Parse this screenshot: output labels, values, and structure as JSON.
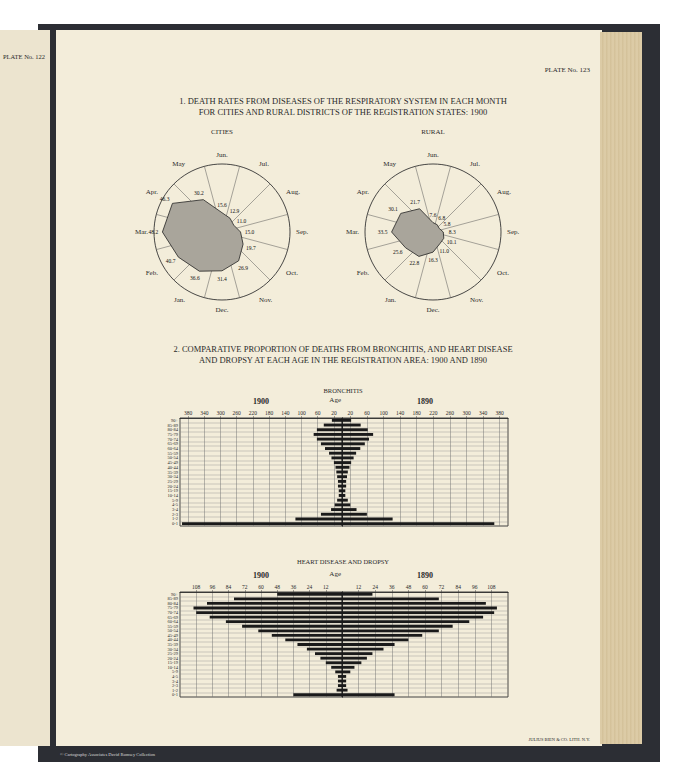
{
  "page": {
    "plate_left": "PLATE No. 122",
    "plate_right": "PLATE No. 123",
    "imprint": "JULIUS BIEN & CO. LITH. N.Y.",
    "credit": "© Cartography Associates David Rumsey Collection"
  },
  "chart_data": [
    {
      "type": "radar",
      "title": "1. DEATH RATES FROM DISEASES OF THE RESPIRATORY SYSTEM IN EACH MONTH\nFOR CITIES AND RURAL DISTRICTS OF THE REGISTRATION STATES: 1900",
      "subtitle": "CITIES",
      "categories": [
        "Jan.",
        "Feb.",
        "Mar.",
        "Apr.",
        "May",
        "Jun.",
        "Jul.",
        "Aug.",
        "Sep.",
        "Oct.",
        "Nov.",
        "Dec."
      ],
      "values": [
        36.6,
        40.7,
        48.2,
        46.3,
        30.2,
        15.6,
        12.9,
        11.0,
        15.0,
        19.7,
        26.9,
        31.4
      ],
      "value_labels": [
        "36.6",
        "40.7",
        "48.2",
        "46.3",
        "30.2",
        "15.6",
        "12.9",
        "11.0",
        "15.0",
        "19.7",
        "26.9",
        "31.4"
      ],
      "rlim": [
        0,
        55
      ],
      "tick_labels": false,
      "data_labels": true,
      "color": "#a9a59b"
    },
    {
      "type": "radar",
      "subtitle": "RURAL",
      "categories": [
        "Jan.",
        "Feb.",
        "Mar.",
        "Apr.",
        "May",
        "Jun.",
        "Jul.",
        "Aug.",
        "Sep.",
        "Oct.",
        "Nov.",
        "Dec."
      ],
      "values": [
        22.8,
        25.6,
        33.5,
        30.1,
        21.7,
        7.6,
        6.8,
        5.8,
        8.3,
        10.1,
        11.0,
        16.3
      ],
      "value_labels": [
        "22.8",
        "25.6",
        "33.5",
        "30.1",
        "21.7",
        "7.6",
        "6.8",
        "5.8",
        "8.3",
        "10.1",
        "11.0",
        "16.3"
      ],
      "rlim": [
        0,
        55
      ],
      "tick_labels": false,
      "data_labels": true,
      "color": "#a9a59b"
    },
    {
      "type": "bar",
      "orientation": "horizontal",
      "title": "2. COMPARATIVE PROPORTION OF DEATHS FROM BRONCHITIS, AND HEART DISEASE\nAND DROPSY AT EACH AGE IN THE REGISTRATION AREA: 1900 AND 1890",
      "subtitle": "BRONCHITIS",
      "y_label": "Age",
      "categories": [
        "0-1",
        "1-2",
        "2-3",
        "3-4",
        "4-5",
        "5-9",
        "10-14",
        "15-19",
        "20-24",
        "25-29",
        "30-34",
        "35-39",
        "40-44",
        "45-49",
        "50-54",
        "55-59",
        "60-64",
        "65-69",
        "70-74",
        "75-79",
        "80-84",
        "85-89",
        "90+"
      ],
      "series": [
        {
          "name": "1900",
          "color": "#1a1a1a",
          "values": [
            395,
            115,
            52,
            27,
            18,
            12,
            8,
            8,
            10,
            10,
            12,
            14,
            16,
            20,
            26,
            32,
            42,
            52,
            62,
            70,
            62,
            45,
            25
          ]
        },
        {
          "name": "1890",
          "color": "#1a1a1a",
          "values": [
            367,
            122,
            60,
            35,
            20,
            14,
            8,
            8,
            10,
            10,
            12,
            14,
            18,
            22,
            28,
            34,
            44,
            55,
            65,
            75,
            62,
            45,
            22
          ]
        }
      ],
      "xlim": [
        0,
        400
      ],
      "xticks": [
        20,
        60,
        100,
        140,
        180,
        220,
        260,
        300,
        340,
        380
      ],
      "grid": true
    },
    {
      "type": "bar",
      "orientation": "horizontal",
      "subtitle": "HEART DISEASE AND DROPSY",
      "y_label": "Age",
      "categories": [
        "0-1",
        "1-2",
        "2-3",
        "3-4",
        "4-5",
        "5-9",
        "10-14",
        "15-19",
        "20-24",
        "25-29",
        "30-34",
        "35-39",
        "40-44",
        "45-49",
        "50-54",
        "55-59",
        "60-64",
        "65-69",
        "70-74",
        "75-79",
        "80-84",
        "85-89",
        "90+"
      ],
      "series": [
        {
          "name": "1900",
          "color": "#1a1a1a",
          "values": [
            36,
            4,
            3,
            3,
            3,
            5,
            8,
            12,
            16,
            20,
            26,
            33,
            42,
            52,
            62,
            74,
            86,
            98,
            108,
            110,
            100,
            80,
            48
          ]
        },
        {
          "name": "1890",
          "color": "#1a1a1a",
          "values": [
            38,
            4,
            3,
            3,
            3,
            6,
            9,
            14,
            18,
            22,
            30,
            38,
            48,
            58,
            70,
            80,
            92,
            102,
            110,
            112,
            104,
            70,
            22
          ]
        }
      ],
      "xlim": [
        0,
        120
      ],
      "xticks": [
        12,
        24,
        36,
        48,
        60,
        72,
        84,
        96,
        108
      ],
      "grid": true
    }
  ]
}
